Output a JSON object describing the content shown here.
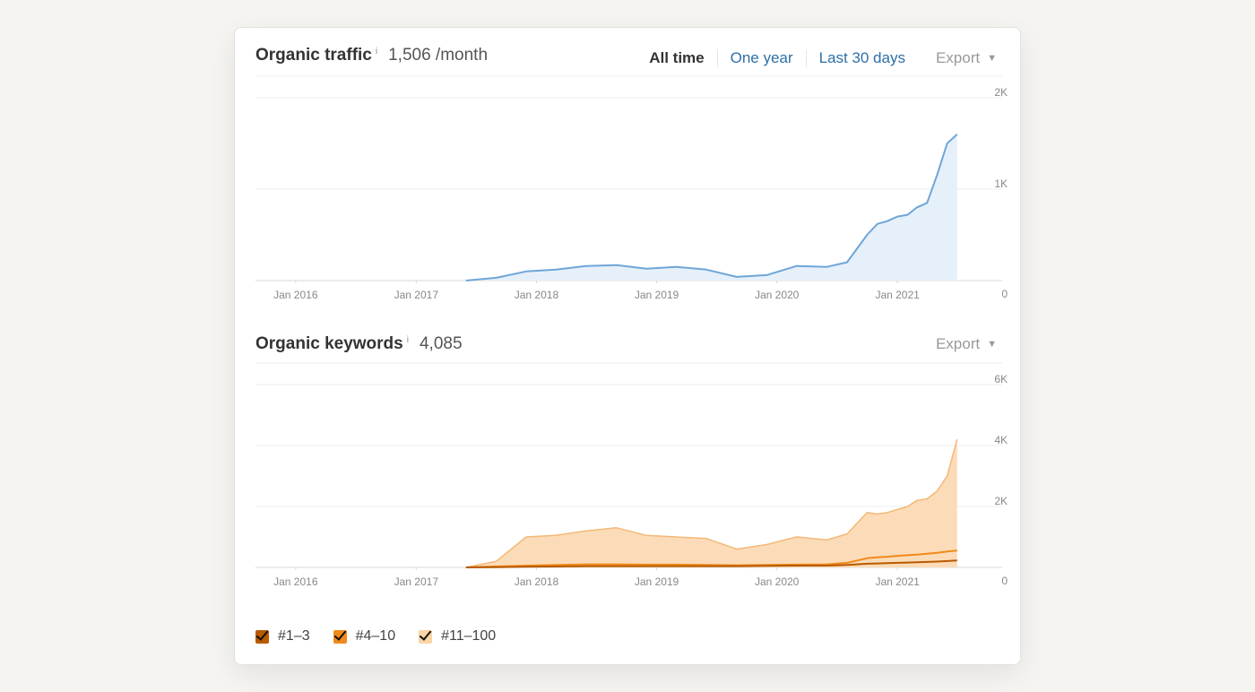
{
  "traffic": {
    "title": "Organic traffic",
    "info": "i",
    "value": "1,506 /month",
    "tabs": [
      "All time",
      "One year",
      "Last 30 days"
    ],
    "active_tab": "All time",
    "export": "Export"
  },
  "keywords": {
    "title": "Organic keywords",
    "info": "i",
    "value": "4,085",
    "export": "Export"
  },
  "legend": [
    {
      "label": "#1–3",
      "color": "#b75a00"
    },
    {
      "label": "#4–10",
      "color": "#f08a1c"
    },
    {
      "label": "#11–100",
      "color": "#fbd5a5"
    }
  ],
  "colors": {
    "traffic_line": "#6ea6d8",
    "traffic_fill": "#e6f0fa",
    "kw_line": "#f3b878",
    "kw_fill": "#fcdcb8"
  },
  "chart_data": [
    {
      "type": "area",
      "title": "Organic traffic",
      "x_ticks": [
        "Jan 2016",
        "Jan 2017",
        "Jan 2018",
        "Jan 2019",
        "Jan 2020",
        "Jan 2021"
      ],
      "y_ticks": [
        "0",
        "1K",
        "2K"
      ],
      "ylim": [
        0,
        2000
      ],
      "x": [
        "2017-06",
        "2017-09",
        "2017-12",
        "2018-03",
        "2018-06",
        "2018-09",
        "2018-12",
        "2019-03",
        "2019-06",
        "2019-09",
        "2019-12",
        "2020-03",
        "2020-06",
        "2020-08",
        "2020-10",
        "2020-11",
        "2020-12",
        "2021-01",
        "2021-02",
        "2021-03",
        "2021-04",
        "2021-05",
        "2021-06",
        "2021-07"
      ],
      "series": [
        {
          "values": [
            0,
            30,
            100,
            120,
            160,
            170,
            130,
            150,
            120,
            40,
            60,
            160,
            150,
            200,
            500,
            620,
            650,
            700,
            720,
            800,
            850,
            1150,
            1500,
            1600
          ]
        }
      ]
    },
    {
      "type": "area",
      "title": "Organic keywords",
      "x_ticks": [
        "Jan 2016",
        "Jan 2017",
        "Jan 2018",
        "Jan 2019",
        "Jan 2020",
        "Jan 2021"
      ],
      "y_ticks": [
        "0",
        "2K",
        "4K",
        "6K"
      ],
      "ylim": [
        0,
        6000
      ],
      "x": [
        "2017-06",
        "2017-09",
        "2017-12",
        "2018-03",
        "2018-06",
        "2018-09",
        "2018-12",
        "2019-03",
        "2019-06",
        "2019-09",
        "2019-12",
        "2020-03",
        "2020-06",
        "2020-08",
        "2020-10",
        "2020-11",
        "2020-12",
        "2021-01",
        "2021-02",
        "2021-03",
        "2021-04",
        "2021-05",
        "2021-06",
        "2021-07"
      ],
      "series": [
        {
          "name": "#1–3",
          "values": [
            0,
            10,
            20,
            30,
            40,
            40,
            40,
            40,
            40,
            40,
            50,
            60,
            60,
            80,
            120,
            130,
            140,
            150,
            160,
            170,
            180,
            190,
            210,
            230
          ]
        },
        {
          "name": "#4–10",
          "values": [
            0,
            30,
            60,
            80,
            100,
            100,
            90,
            90,
            80,
            70,
            80,
            90,
            100,
            150,
            300,
            330,
            350,
            380,
            400,
            420,
            450,
            480,
            520,
            550
          ]
        },
        {
          "name": "#11–100",
          "values": [
            0,
            200,
            1000,
            1050,
            1200,
            1300,
            1050,
            1000,
            950,
            600,
            750,
            1000,
            900,
            1100,
            1800,
            1750,
            1800,
            1900,
            2000,
            2200,
            2250,
            2500,
            3000,
            4200
          ]
        }
      ]
    }
  ]
}
